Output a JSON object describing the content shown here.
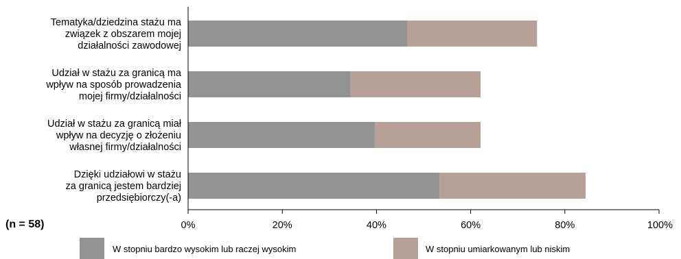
{
  "chart_data": {
    "type": "bar",
    "orientation": "horizontal",
    "stacked": true,
    "categories": [
      [
        "Tematyka/dziedzina stażu ma",
        "związek z obszarem mojej",
        "działalności zawodowej"
      ],
      [
        "Udział w stażu za granicą ma",
        "wpływ na sposób prowadzenia",
        "mojej firmy/działalności"
      ],
      [
        "Udział w stażu za granicą miał",
        "wpływ na decyzję o złożeniu",
        "własnej firmy/działalności"
      ],
      [
        "Dzięki udziałowi w stażu",
        "za granicą jestem bardziej",
        "przedsiębiorczy(-a)"
      ]
    ],
    "series": [
      {
        "name": "W stopniu bardzo wysokim lub raczej wysokim",
        "color": "#939393",
        "values": [
          46.5,
          34.5,
          39.7,
          53.4
        ]
      },
      {
        "name": "W stopniu umiarkowanym lub niskim",
        "color": "#b7a098",
        "values": [
          27.6,
          27.6,
          22.4,
          31.0
        ]
      }
    ],
    "xlim": [
      0,
      100
    ],
    "ticks": [
      "0%",
      "20%",
      "40%",
      "60%",
      "80%",
      "100%"
    ],
    "grid": false,
    "legend_position": "bottom",
    "note": "(n = 58)"
  }
}
